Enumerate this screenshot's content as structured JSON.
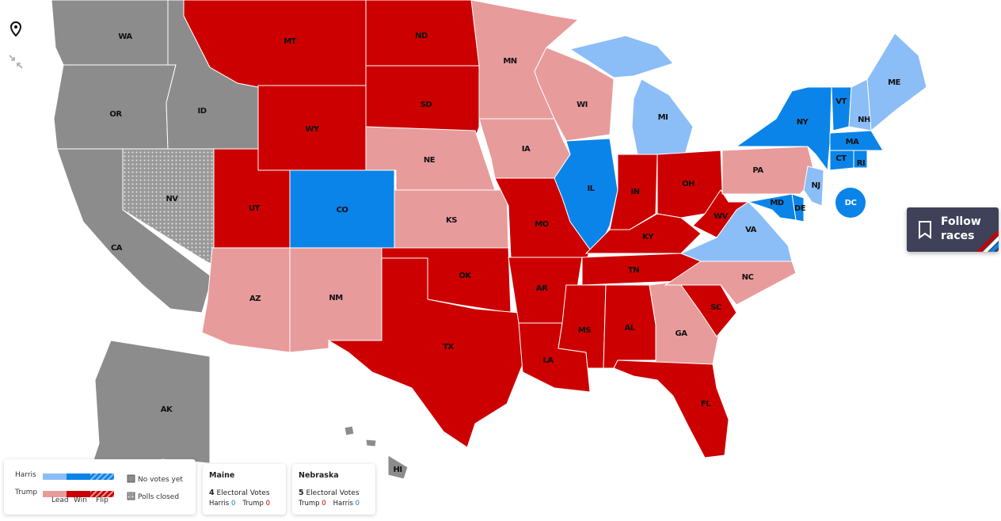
{
  "map": {
    "states": [
      {
        "label": "WA",
        "color": "#8c8c8c"
      },
      {
        "label": "OR",
        "color": "#8c8c8c"
      },
      {
        "label": "ID",
        "color": "#8c8c8c"
      },
      {
        "label": "CA",
        "color": "#8c8c8c"
      },
      {
        "label": "NV",
        "color": "#9a9a9a",
        "pattern": "dots"
      },
      {
        "label": "MT",
        "color": "#cc0000"
      },
      {
        "label": "WY",
        "color": "#cc0000"
      },
      {
        "label": "UT",
        "color": "#cc0000"
      },
      {
        "label": "CO",
        "color": "#0a84e8"
      },
      {
        "label": "AZ",
        "color": "#e89b9b"
      },
      {
        "label": "NM",
        "color": "#e89b9b"
      },
      {
        "label": "ND",
        "color": "#cc0000"
      },
      {
        "label": "SD",
        "color": "#cc0000"
      },
      {
        "label": "NE",
        "color": "#e89b9b"
      },
      {
        "label": "KS",
        "color": "#e89b9b"
      },
      {
        "label": "OK",
        "color": "#cc0000"
      },
      {
        "label": "TX",
        "color": "#cc0000"
      },
      {
        "label": "MN",
        "color": "#e89b9b"
      },
      {
        "label": "IA",
        "color": "#e89b9b"
      },
      {
        "label": "MO",
        "color": "#cc0000"
      },
      {
        "label": "AR",
        "color": "#cc0000"
      },
      {
        "label": "LA",
        "color": "#cc0000"
      },
      {
        "label": "WI",
        "color": "#e89b9b"
      },
      {
        "label": "IL",
        "color": "#0a84e8"
      },
      {
        "label": "MI",
        "color": "#8bbdf7"
      },
      {
        "label": "IN",
        "color": "#cc0000"
      },
      {
        "label": "OH",
        "color": "#cc0000"
      },
      {
        "label": "KY",
        "color": "#cc0000"
      },
      {
        "label": "TN",
        "color": "#cc0000"
      },
      {
        "label": "MS",
        "color": "#cc0000"
      },
      {
        "label": "AL",
        "color": "#cc0000"
      },
      {
        "label": "GA",
        "color": "#e89b9b"
      },
      {
        "label": "FL",
        "color": "#cc0000"
      },
      {
        "label": "SC",
        "color": "#cc0000"
      },
      {
        "label": "NC",
        "color": "#e89b9b"
      },
      {
        "label": "VA",
        "color": "#8bbdf7"
      },
      {
        "label": "WV",
        "color": "#cc0000"
      },
      {
        "label": "PA",
        "color": "#e89b9b"
      },
      {
        "label": "NY",
        "color": "#0a84e8"
      },
      {
        "label": "NJ",
        "color": "#8bbdf7"
      },
      {
        "label": "DE",
        "color": "#0a84e8"
      },
      {
        "label": "MD",
        "color": "#0a84e8"
      },
      {
        "label": "VT",
        "color": "#0a84e8"
      },
      {
        "label": "NH",
        "color": "#8bbdf7"
      },
      {
        "label": "ME",
        "color": "#8bbdf7"
      },
      {
        "label": "MA",
        "color": "#0a84e8"
      },
      {
        "label": "CT",
        "color": "#0a84e8"
      },
      {
        "label": "RI",
        "color": "#0a84e8"
      },
      {
        "label": "AK",
        "color": "#8c8c8c"
      },
      {
        "label": "HI",
        "color": "#8c8c8c"
      },
      {
        "label": "DC",
        "color": "#0a84e8"
      }
    ],
    "legend": {
      "rows": [
        {
          "name": "Harris",
          "colors": [
            "#8bbdf7",
            "#0a84e8"
          ]
        },
        {
          "name": "Trump",
          "colors": [
            "#e89b9b",
            "#cc0000"
          ]
        }
      ],
      "columns": [
        "Lead",
        "Win",
        "Flip"
      ],
      "status": [
        {
          "label": "No votes yet",
          "color": "#8c8c8c"
        },
        {
          "label": "Polls closed",
          "color": "#9a9a9a",
          "pattern": "dots"
        }
      ]
    },
    "cards": [
      {
        "title": "Maine",
        "votes": 4,
        "votes_label": "Electoral Votes",
        "candidates": [
          {
            "name": "Harris",
            "value": 0,
            "color": "#0a84e8"
          },
          {
            "name": "Trump",
            "value": 0,
            "color": "#cc0000"
          }
        ]
      },
      {
        "title": "Nebraska",
        "votes": 5,
        "votes_label": "Electoral Votes",
        "candidates": [
          {
            "name": "Trump",
            "value": 0,
            "color": "#cc0000"
          },
          {
            "name": "Harris",
            "value": 0,
            "color": "#0a84e8"
          }
        ]
      }
    ],
    "follow": {
      "label": "Follow races"
    }
  }
}
